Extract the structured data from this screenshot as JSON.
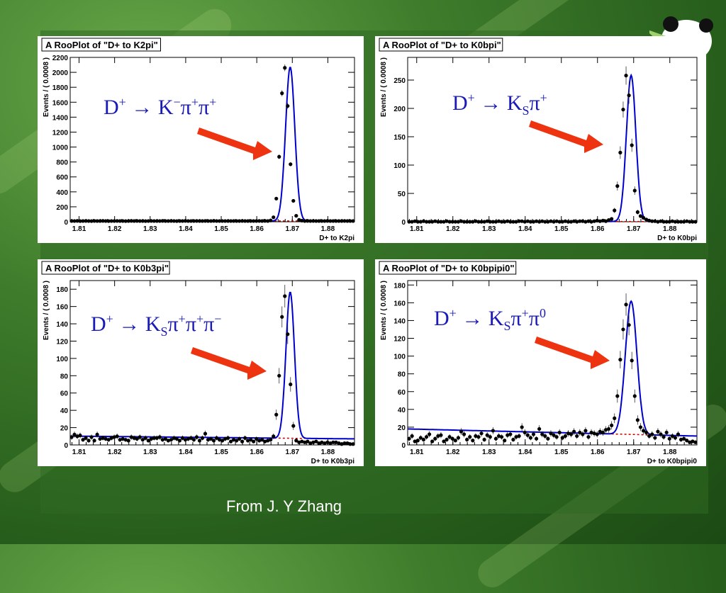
{
  "colors": {
    "fit": "#0000cc",
    "background_fit": "#cc0000",
    "points": "#000000",
    "arrow": "#ee3311",
    "decay_text": "#1a1ab8"
  },
  "credit": "From J. Y Zhang",
  "chart_data": [
    {
      "type": "scatter",
      "title": "A RooPlot of \"D+ to K2pi\"",
      "xlabel": "D+ to K2pi",
      "ylabel": "Events / ( 0.0008 )",
      "xlim": [
        1.8075,
        1.8875
      ],
      "ylim": [
        0,
        2200
      ],
      "xticks": [
        1.81,
        1.82,
        1.83,
        1.84,
        1.85,
        1.86,
        1.87,
        1.88
      ],
      "xtick_labels": [
        "1.81",
        "1.82",
        "1.83",
        "1.84",
        "1.85",
        "1.86",
        "1.87",
        "1.88"
      ],
      "yticks": [
        0,
        200,
        400,
        600,
        800,
        1000,
        1200,
        1400,
        1600,
        1800,
        2000,
        2200
      ],
      "ytick_labels": [
        "0",
        "200",
        "400",
        "600",
        "800",
        "1000",
        "1200",
        "1400",
        "1600",
        "1800",
        "2000",
        "2200"
      ],
      "peak": {
        "mean": 1.8694,
        "sigma": 0.0013,
        "height": 2060
      },
      "background": {
        "a": 10,
        "b": 0,
        "end": 1.8875
      },
      "points_y": [
        10,
        10,
        12,
        9,
        10,
        11,
        10,
        9,
        11,
        10,
        10,
        12,
        10,
        9,
        10,
        10,
        11,
        10,
        10,
        9,
        10,
        12,
        10,
        11,
        10,
        10,
        9,
        10,
        11,
        10,
        10,
        10,
        12,
        10,
        10,
        11,
        10,
        9,
        10,
        10,
        12,
        10,
        10,
        10,
        11,
        10,
        10,
        11,
        10,
        10,
        12,
        10,
        10,
        10,
        10,
        10,
        10,
        10,
        10,
        10,
        11,
        10,
        10,
        10,
        10,
        10,
        11,
        10,
        12,
        10,
        18,
        60,
        310,
        870,
        1720,
        2060,
        1550,
        770,
        280,
        80,
        25,
        15,
        10,
        12,
        10,
        11,
        10,
        10,
        10,
        10,
        12,
        10,
        10,
        10,
        10,
        10,
        11,
        10,
        10,
        10
      ],
      "decay_label": {
        "parent": "D",
        "parent_charge": "+",
        "arrow": "→",
        "products": [
          [
            "K",
            "−",
            ""
          ],
          [
            "π",
            "+",
            ""
          ],
          [
            "π",
            "+",
            ""
          ]
        ]
      }
    },
    {
      "type": "scatter",
      "title": "A RooPlot of \"D+ to K0bpi\"",
      "xlabel": "D+ to K0bpi",
      "ylabel": "Events / ( 0.0008 )",
      "xlim": [
        1.8075,
        1.8875
      ],
      "ylim": [
        0,
        290
      ],
      "xticks": [
        1.81,
        1.82,
        1.83,
        1.84,
        1.85,
        1.86,
        1.87,
        1.88
      ],
      "xtick_labels": [
        "1.81",
        "1.82",
        "1.83",
        "1.84",
        "1.85",
        "1.86",
        "1.87",
        "1.88"
      ],
      "yticks": [
        0,
        50,
        100,
        150,
        200,
        250
      ],
      "ytick_labels": [
        "0",
        "50",
        "100",
        "150",
        "200",
        "250"
      ],
      "peak": {
        "mean": 1.8693,
        "sigma": 0.0013,
        "height": 258
      },
      "background": {
        "a": 0.5,
        "b": 0,
        "end": 1.8875
      },
      "points_y": [
        0,
        0,
        1,
        0,
        0,
        1,
        0,
        0,
        0,
        1,
        0,
        0,
        0,
        1,
        0,
        0,
        0,
        0,
        1,
        0,
        0,
        0,
        0,
        1,
        0,
        0,
        0,
        1,
        0,
        0,
        0,
        1,
        0,
        0,
        1,
        0,
        0,
        0,
        1,
        1,
        0,
        1,
        0,
        0,
        1,
        0,
        1,
        0,
        0,
        1,
        0,
        1,
        0,
        0,
        1,
        0,
        0,
        1,
        0,
        1,
        1,
        0,
        1,
        0,
        1,
        2,
        1,
        2,
        1,
        3,
        5,
        20,
        63,
        122,
        198,
        258,
        223,
        135,
        55,
        17,
        10,
        7,
        4,
        2,
        1,
        1,
        0,
        1,
        0,
        0,
        0,
        1,
        0,
        0,
        0,
        0,
        1,
        0,
        0,
        0
      ],
      "decay_label": {
        "parent": "D",
        "parent_charge": "+",
        "arrow": "→",
        "products": [
          [
            "K",
            "",
            "S"
          ],
          [
            "π",
            "+",
            ""
          ]
        ]
      }
    },
    {
      "type": "scatter",
      "title": "A RooPlot of \"D+ to K0b3pi\"",
      "xlabel": "D+ to K0b3pi",
      "ylabel": "Events / ( 0.0008 )",
      "xlim": [
        1.8075,
        1.8875
      ],
      "ylim": [
        0,
        190
      ],
      "xticks": [
        1.81,
        1.82,
        1.83,
        1.84,
        1.85,
        1.86,
        1.87,
        1.88
      ],
      "xtick_labels": [
        "1.81",
        "1.82",
        "1.83",
        "1.84",
        "1.85",
        "1.86",
        "1.87",
        "1.88"
      ],
      "yticks": [
        0,
        20,
        40,
        60,
        80,
        100,
        120,
        140,
        160,
        180
      ],
      "ytick_labels": [
        "0",
        "20",
        "40",
        "60",
        "80",
        "100",
        "120",
        "140",
        "160",
        "180"
      ],
      "peak": {
        "mean": 1.8694,
        "sigma": 0.0012,
        "height": 169
      },
      "background": {
        "a": 7,
        "b": -40,
        "end": 1.8875
      },
      "points_y": [
        9,
        12,
        10,
        11,
        6,
        8,
        5,
        9,
        5,
        12,
        7,
        8,
        7,
        6,
        8,
        9,
        10,
        6,
        7,
        6,
        5,
        9,
        8,
        7,
        9,
        6,
        8,
        5,
        7,
        8,
        8,
        9,
        6,
        7,
        5,
        6,
        8,
        7,
        5,
        8,
        6,
        7,
        8,
        6,
        9,
        5,
        8,
        13,
        6,
        7,
        5,
        8,
        6,
        5,
        7,
        8,
        4,
        6,
        5,
        7,
        4,
        8,
        5,
        6,
        4,
        7,
        5,
        6,
        4,
        5,
        6,
        10,
        35,
        80,
        148,
        172,
        128,
        70,
        22,
        5,
        3,
        4,
        3,
        4,
        2,
        3,
        4,
        2,
        3,
        2,
        3,
        2,
        3,
        3,
        2,
        1,
        2,
        2,
        1,
        1
      ],
      "decay_label": {
        "parent": "D",
        "parent_charge": "+",
        "arrow": "→",
        "products": [
          [
            "K",
            "",
            "S"
          ],
          [
            "π",
            "+",
            ""
          ],
          [
            "π",
            "+",
            ""
          ],
          [
            "π",
            "−",
            ""
          ]
        ]
      }
    },
    {
      "type": "scatter",
      "title": "A RooPlot of \"D+ to K0bpipi0\"",
      "xlabel": "D+ to K0bpipi0",
      "ylabel": "Events / ( 0.0008 )",
      "xlim": [
        1.8075,
        1.8875
      ],
      "ylim": [
        0,
        185
      ],
      "xticks": [
        1.81,
        1.82,
        1.83,
        1.84,
        1.85,
        1.86,
        1.87,
        1.88
      ],
      "xtick_labels": [
        "1.81",
        "1.82",
        "1.83",
        "1.84",
        "1.85",
        "1.86",
        "1.87",
        "1.88"
      ],
      "yticks": [
        0,
        20,
        40,
        60,
        80,
        100,
        120,
        140,
        160,
        180
      ],
      "ytick_labels": [
        "0",
        "20",
        "40",
        "60",
        "80",
        "100",
        "120",
        "140",
        "160",
        "180"
      ],
      "peak": {
        "mean": 1.8693,
        "sigma": 0.0016,
        "height": 150
      },
      "background": {
        "a": 10,
        "b": -100,
        "end": 1.8875
      },
      "points_y": [
        7,
        10,
        4,
        5,
        8,
        6,
        9,
        12,
        4,
        7,
        10,
        11,
        4,
        6,
        9,
        7,
        5,
        8,
        15,
        12,
        6,
        9,
        5,
        10,
        9,
        13,
        6,
        11,
        9,
        16,
        7,
        10,
        9,
        5,
        11,
        12,
        6,
        9,
        10,
        20,
        14,
        11,
        8,
        12,
        7,
        18,
        12,
        10,
        7,
        13,
        11,
        9,
        14,
        8,
        10,
        13,
        12,
        15,
        10,
        14,
        12,
        16,
        9,
        14,
        13,
        12,
        15,
        14,
        17,
        18,
        22,
        30,
        55,
        96,
        130,
        158,
        135,
        95,
        55,
        28,
        20,
        16,
        14,
        10,
        12,
        8,
        15,
        12,
        9,
        14,
        7,
        10,
        8,
        12,
        6,
        7,
        5,
        3,
        4,
        3
      ],
      "decay_label": {
        "parent": "D",
        "parent_charge": "+",
        "arrow": "→",
        "products": [
          [
            "K",
            "",
            "S"
          ],
          [
            "π",
            "+",
            ""
          ],
          [
            "π",
            "0",
            ""
          ]
        ]
      }
    }
  ]
}
